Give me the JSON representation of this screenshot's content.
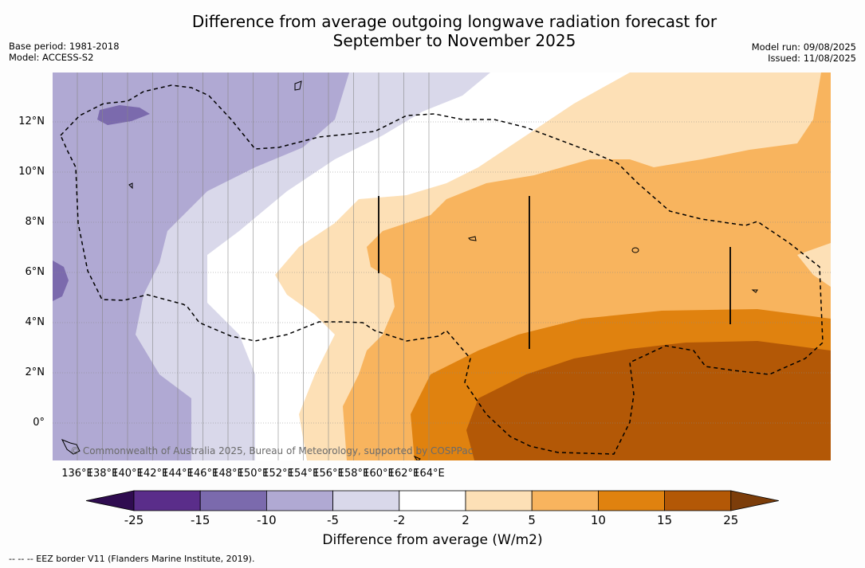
{
  "title_line1": "Difference from average outgoing longwave radiation forecast for",
  "title_line2": "September to November 2025",
  "meta_left": [
    "Base period: 1981-2018",
    "Model: ACCESS-S2"
  ],
  "meta_right": [
    "Model run: 09/08/2025",
    "Issued: 11/08/2025"
  ],
  "x_ticks": [
    "136°E",
    "138°E",
    "140°E",
    "142°E",
    "144°E",
    "146°E",
    "148°E",
    "150°E",
    "152°E",
    "154°E",
    "156°E",
    "158°E",
    "160°E",
    "162°E",
    "164°E"
  ],
  "y_ticks": [
    "12°N",
    "10°N",
    "8°N",
    "6°N",
    "4°N",
    "2°N",
    "0°"
  ],
  "colorbar": {
    "colors": [
      "#5a2d8a",
      "#7b6aad",
      "#b0a9d3",
      "#d9d8ea",
      "#ffffff",
      "#fde0b6",
      "#f8b45e",
      "#e0820f",
      "#b35806"
    ],
    "low_extend": "#2f0c50",
    "high_extend": "#7c3d0a",
    "labels": [
      "-25",
      "-15",
      "-10",
      "-5",
      "-2",
      "2",
      "5",
      "10",
      "15",
      "25"
    ],
    "title": "Difference from average (W/m2)"
  },
  "copyright": "© Commonwealth of Australia 2025, Bureau of Meteorology, supported by COSPPac",
  "footnote": "-- -- -- EEZ border V11 (Flanders Marine Institute, 2019)."
}
